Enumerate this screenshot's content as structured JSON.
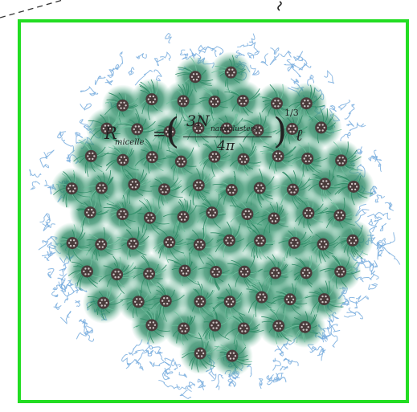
{
  "figure": {
    "colors": {
      "frame": "#22dd22",
      "core": "#4a3b3b",
      "core_dots": "#cfc7c7",
      "corona": "#2e8b66",
      "corona_light": "#6fbf9d",
      "outer_chains": "#6fa8dc"
    },
    "equation": {
      "lhs_symbol": "R",
      "lhs_subscript": "micelle",
      "equals": "=",
      "numerator": "3N",
      "numerator_subscript": "nanoclusters",
      "denominator": "4π",
      "exponent": "1/3",
      "rhs_symbol": "ℓ"
    }
  }
}
